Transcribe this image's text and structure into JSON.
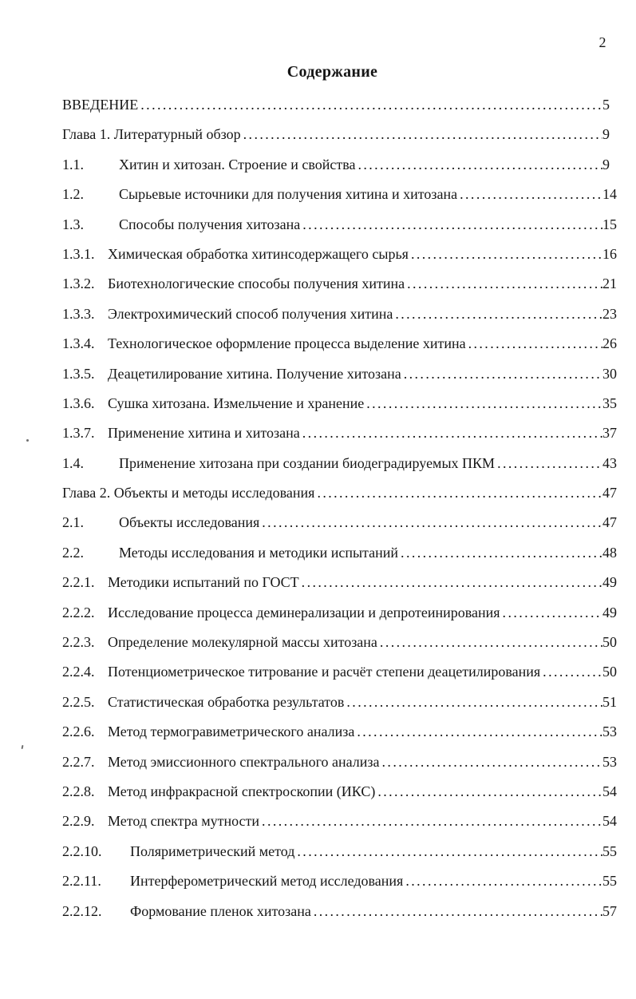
{
  "page": {
    "number": "2",
    "title": "Содержание"
  },
  "colors": {
    "background": "#ffffff",
    "text": "#161616"
  },
  "toc": {
    "entries": [
      {
        "num": "",
        "title": "ВВЕДЕНИЕ",
        "page": "5",
        "style": "plain"
      },
      {
        "num": "",
        "title": "Глава 1. Литературный обзор",
        "page": "9",
        "style": "plain"
      },
      {
        "num": "1.1.",
        "title": "Хитин и хитозан. Строение и свойства",
        "page": "9",
        "style": "sec"
      },
      {
        "num": "1.2.",
        "title": "Сырьевые источники  для получения хитина и хитозана",
        "page": "14",
        "style": "sec"
      },
      {
        "num": "1.3.",
        "title": "Способы получения хитозана",
        "page": "15",
        "style": "sec"
      },
      {
        "num": "1.3.1.",
        "title": "Химическая обработка хитинсодержащего сырья",
        "page": "16",
        "style": "sub"
      },
      {
        "num": "1.3.2.",
        "title": "Биотехнологические способы получения хитина",
        "page": "21",
        "style": "sub"
      },
      {
        "num": "1.3.3.",
        "title": "Электрохимический способ получения хитина",
        "page": "23",
        "style": "sub"
      },
      {
        "num": "1.3.4.",
        "title": "Технологическое оформление процесса выделение хитина",
        "page": "26",
        "style": "sub"
      },
      {
        "num": "1.3.5.",
        "title": "Деацетилирование хитина. Получение хитозана",
        "page": "30",
        "style": "sub"
      },
      {
        "num": "1.3.6.",
        "title": "Сушка хитозана. Измельчение и хранение",
        "page": "35",
        "style": "sub"
      },
      {
        "num": "1.3.7.",
        "title": "Применение хитина и хитозана",
        "page": "37",
        "style": "sub"
      },
      {
        "num": "1.4.",
        "title": "Применение хитозана при создании биодеградируемых ПКМ",
        "page": "43",
        "style": "sec"
      },
      {
        "num": "",
        "title": "Глава 2. Объекты и методы исследования",
        "page": "47",
        "style": "plain"
      },
      {
        "num": "2.1.",
        "title": "Объекты исследования",
        "page": "47",
        "style": "sec"
      },
      {
        "num": "2.2.",
        "title": "Методы исследования и методики испытаний",
        "page": "48",
        "style": "sec"
      },
      {
        "num": "2.2.1.",
        "title": "Методики испытаний по ГОСТ",
        "page": "49",
        "style": "sub"
      },
      {
        "num": "2.2.2.",
        "title": "Исследование процесса деминерализации и депротеинирования",
        "page": "49",
        "style": "sub"
      },
      {
        "num": "2.2.3.",
        "title": "Определение молекулярной массы хитозана",
        "page": "50",
        "style": "sub"
      },
      {
        "num": "2.2.4.",
        "title": "Потенциометрическое титрование и расчёт степени деацетилирования",
        "page": "50",
        "style": "sub"
      },
      {
        "num": "2.2.5.",
        "title": "Статистическая обработка результатов",
        "page": "51",
        "style": "sub"
      },
      {
        "num": "2.2.6.",
        "title": "Метод термогравиметрического анализа",
        "page": "53",
        "style": "sub"
      },
      {
        "num": "2.2.7.",
        "title": "Метод эмиссионного спектрального анализа",
        "page": "53",
        "style": "sub"
      },
      {
        "num": "2.2.8.",
        "title": "Метод инфракрасной спектроскопии (ИКС)",
        "page": "54",
        "style": "sub"
      },
      {
        "num": "2.2.9.",
        "title": "Метод спектра мутности",
        "page": "54",
        "style": "sub"
      },
      {
        "num": "2.2.10.",
        "title": "Поляриметрический метод",
        "page": "55",
        "style": "subwide"
      },
      {
        "num": "2.2.11.",
        "title": "Интерферометрический метод исследования",
        "page": "55",
        "style": "subwide"
      },
      {
        "num": "2.2.12.",
        "title": "Формование пленок хитозана",
        "page": "57",
        "style": "subwide"
      }
    ]
  }
}
